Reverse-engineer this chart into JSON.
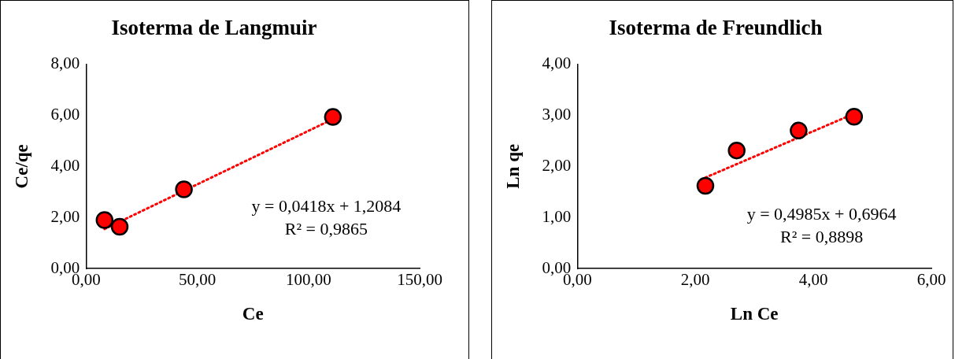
{
  "chart_data": [
    {
      "type": "scatter",
      "title": "Isoterma de Langmuir",
      "xlabel": "Ce",
      "ylabel": "Ce/qe",
      "marker": "circle",
      "grid": false,
      "legend": false,
      "xlim": [
        0,
        150
      ],
      "xticks": [
        {
          "value": 0,
          "label": "0,00"
        },
        {
          "value": 50,
          "label": "50,00"
        },
        {
          "value": 100,
          "label": "100,00"
        },
        {
          "value": 150,
          "label": "150,00"
        }
      ],
      "ylim": [
        0,
        8
      ],
      "yticks": [
        {
          "value": 0,
          "label": "0,00"
        },
        {
          "value": 2,
          "label": "2,00"
        },
        {
          "value": 4,
          "label": "4,00"
        },
        {
          "value": 6,
          "label": "6,00"
        },
        {
          "value": 8,
          "label": "8,00"
        }
      ],
      "series": [
        {
          "color": "#ff0000",
          "x": [
            8.3,
            15.1,
            44,
            111
          ],
          "values": [
            1.9,
            1.64,
            3.1,
            5.93
          ]
        },
        {
          "type": "line",
          "color": "#ff0000",
          "line_style": "dotted",
          "marker": "none",
          "x": [
            8.3,
            111
          ],
          "values": [
            1.55,
            5.85
          ]
        }
      ],
      "annotations": [
        "y = 0,0418x + 1,2084",
        "R² = 0,9865"
      ]
    },
    {
      "type": "scatter",
      "title": "Isoterma de Freundlich",
      "xlabel": "Ln Ce",
      "ylabel": "Ln qe",
      "marker": "circle",
      "grid": false,
      "legend": false,
      "xlim": [
        0,
        6
      ],
      "xticks": [
        {
          "value": 0,
          "label": "0,00"
        },
        {
          "value": 2,
          "label": "2,00"
        },
        {
          "value": 4,
          "label": "4,00"
        },
        {
          "value": 6,
          "label": "6,00"
        }
      ],
      "ylim": [
        0,
        4
      ],
      "yticks": [
        {
          "value": 0,
          "label": "0,00"
        },
        {
          "value": 1,
          "label": "1,00"
        },
        {
          "value": 2,
          "label": "2,00"
        },
        {
          "value": 3,
          "label": "3,00"
        },
        {
          "value": 4,
          "label": "4,00"
        }
      ],
      "series": [
        {
          "color": "#ff0000",
          "x": [
            2.17,
            2.7,
            3.75,
            4.69
          ],
          "values": [
            1.62,
            2.31,
            2.7,
            2.97
          ]
        },
        {
          "type": "line",
          "color": "#ff0000",
          "line_style": "dotted",
          "marker": "none",
          "x": [
            2.17,
            4.69
          ],
          "values": [
            1.78,
            3.03
          ]
        }
      ],
      "annotations": [
        "y = 0,4985x + 0,6964",
        "R² = 0,8898"
      ]
    }
  ]
}
